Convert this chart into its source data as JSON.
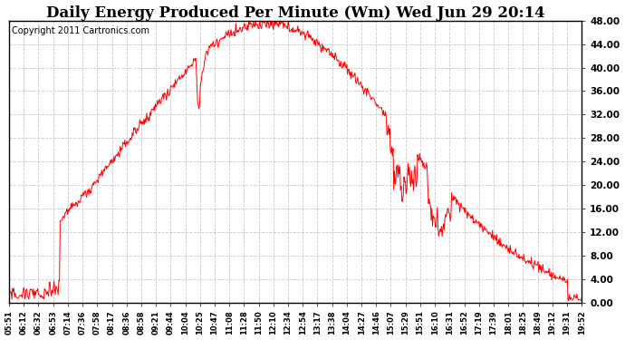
{
  "title": "Daily Energy Produced Per Minute (Wm) Wed Jun 29 20:14",
  "copyright": "Copyright 2011 Cartronics.com",
  "line_color": "#ff0000",
  "bg_color": "#ffffff",
  "plot_bg_color": "#ffffff",
  "grid_color": "#c8c8c8",
  "ylim": [
    0,
    48
  ],
  "yticks": [
    0,
    4,
    8,
    12,
    16,
    20,
    24,
    28,
    32,
    36,
    40,
    44,
    48
  ],
  "ytick_labels": [
    "0.00",
    "4.00",
    "8.00",
    "12.00",
    "16.00",
    "20.00",
    "24.00",
    "28.00",
    "32.00",
    "36.00",
    "40.00",
    "44.00",
    "48.00"
  ],
  "xtick_labels": [
    "05:51",
    "06:12",
    "06:32",
    "06:53",
    "07:14",
    "07:36",
    "07:58",
    "08:17",
    "08:36",
    "08:58",
    "09:21",
    "09:44",
    "10:04",
    "10:25",
    "10:47",
    "11:08",
    "11:28",
    "11:50",
    "12:10",
    "12:34",
    "12:54",
    "13:17",
    "13:38",
    "14:04",
    "14:27",
    "14:46",
    "15:07",
    "15:29",
    "15:51",
    "16:10",
    "16:31",
    "16:52",
    "17:19",
    "17:39",
    "18:01",
    "18:25",
    "18:49",
    "19:12",
    "19:31",
    "19:52"
  ],
  "title_fontsize": 12,
  "copyright_fontsize": 7,
  "figsize": [
    6.9,
    3.75
  ],
  "dpi": 100
}
